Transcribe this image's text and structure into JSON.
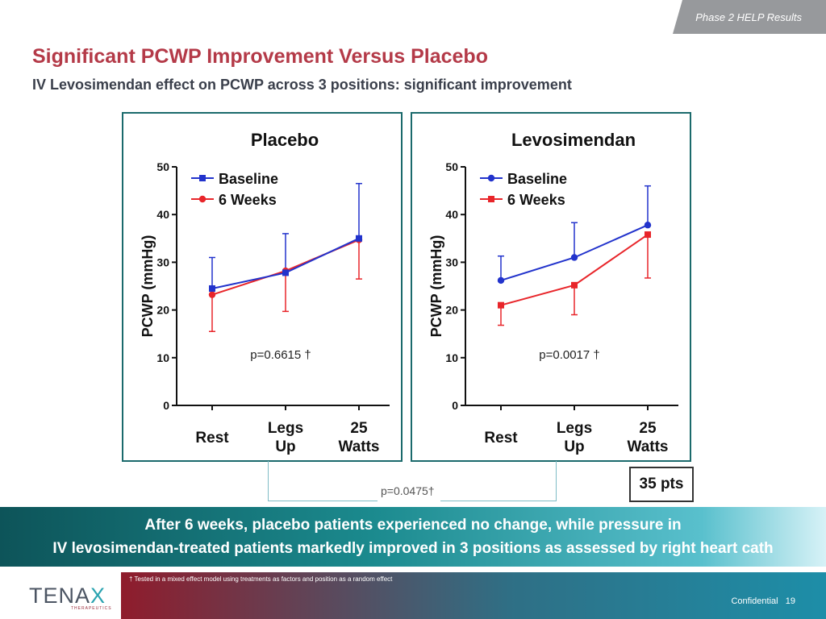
{
  "header": {
    "section_tag": "Phase 2 HELP Results",
    "title": "Significant PCWP Improvement Versus Placebo",
    "subtitle": "IV Levosimendan effect on PCWP across 3 positions: significant improvement"
  },
  "chart_data": [
    {
      "type": "line",
      "title": "Placebo",
      "ylabel": "PCWP (mmHg)",
      "xlabel": "",
      "categories": [
        "Rest",
        "Legs Up",
        "25 Watts"
      ],
      "category_lines": [
        [
          "Rest"
        ],
        [
          "Legs",
          "Up"
        ],
        [
          "25",
          "Watts"
        ]
      ],
      "ylim": [
        0,
        50
      ],
      "yticks": [
        0,
        10,
        20,
        30,
        40,
        50
      ],
      "legend_position": "top-left",
      "series": [
        {
          "name": "Baseline",
          "color": "#2233cc",
          "marker": "square",
          "values": [
            24.5,
            27.8,
            35.0
          ],
          "error_upper": [
            31,
            36,
            46.5
          ],
          "error_lower": [
            null,
            null,
            null
          ]
        },
        {
          "name": "6 Weeks",
          "color": "#e8252a",
          "marker": "circle",
          "values": [
            23.2,
            28.2,
            34.7
          ],
          "error_upper": [
            null,
            null,
            null
          ],
          "error_lower": [
            15.5,
            19.7,
            26.5
          ]
        }
      ],
      "annotation": "p=0.6615 †"
    },
    {
      "type": "line",
      "title": "Levosimendan",
      "ylabel": "PCWP (mmHg)",
      "xlabel": "",
      "categories": [
        "Rest",
        "Legs Up",
        "25 Watts"
      ],
      "category_lines": [
        [
          "Rest"
        ],
        [
          "Legs",
          "Up"
        ],
        [
          "25",
          "Watts"
        ]
      ],
      "ylim": [
        0,
        50
      ],
      "yticks": [
        0,
        10,
        20,
        30,
        40,
        50
      ],
      "legend_position": "top-left",
      "series": [
        {
          "name": "Baseline",
          "color": "#2233cc",
          "marker": "circle",
          "values": [
            26.2,
            31.0,
            37.8
          ],
          "error_upper": [
            31.3,
            38.3,
            46.0
          ],
          "error_lower": [
            null,
            null,
            null
          ]
        },
        {
          "name": "6 Weeks",
          "color": "#e8252a",
          "marker": "square",
          "values": [
            21.0,
            25.2,
            35.8
          ],
          "error_upper": [
            null,
            null,
            null
          ],
          "error_lower": [
            16.8,
            19.0,
            26.7
          ]
        }
      ],
      "annotation": "p=0.0017 †"
    }
  ],
  "comparison": {
    "pvalue": "p=0.0475†",
    "points_badge": "35 pts"
  },
  "banner": {
    "line1": "After 6 weeks, placebo patients experienced no change, while pressure in",
    "line2": "IV levosimendan-treated patients markedly improved in 3 positions as assessed by right heart cath"
  },
  "footer": {
    "logo_main_a": "TENA",
    "logo_main_x": "X",
    "logo_sub": "THERAPEUTICS",
    "footnote": "† Tested in a mixed effect model using treatments as factors and position as a random effect",
    "confidential": "Confidential",
    "page_number": "19"
  }
}
